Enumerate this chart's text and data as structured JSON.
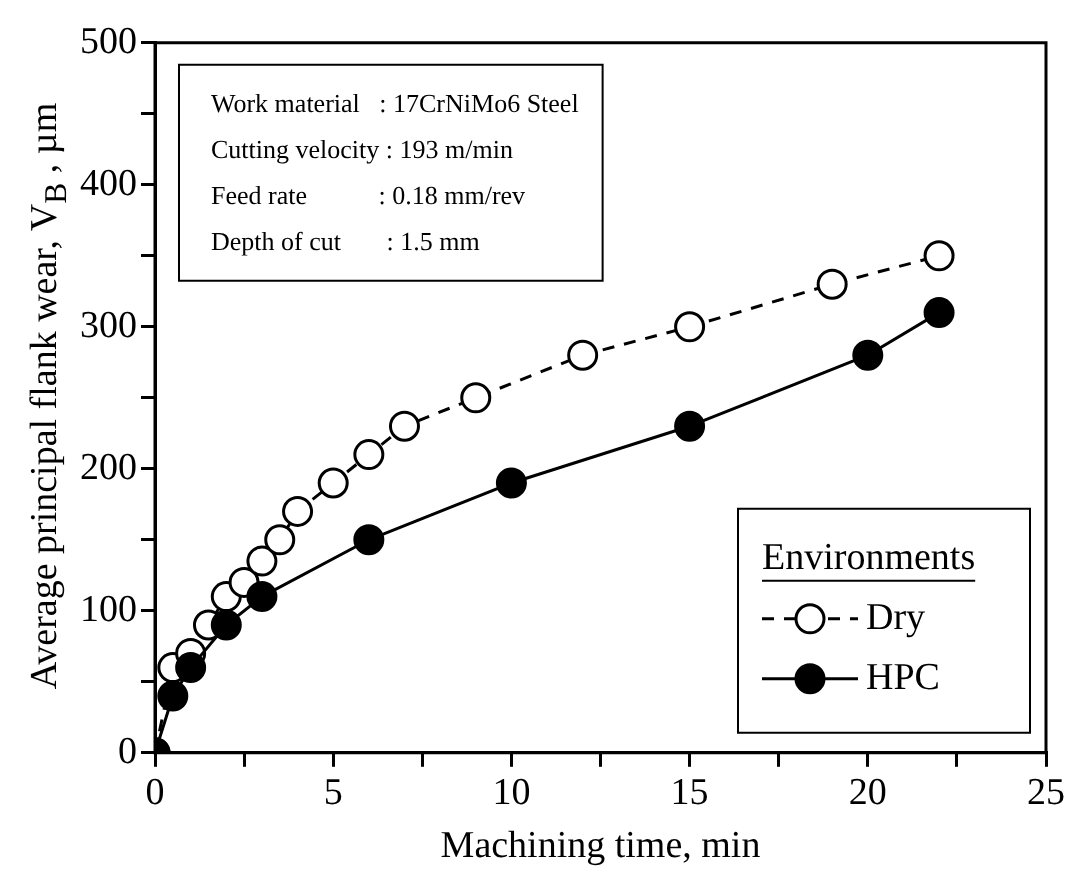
{
  "chart_data": {
    "type": "line",
    "xlabel": "Machining time, min",
    "ylabel": "Average principal flank wear, V$_{B}$ , µm",
    "legend_title": "Environments",
    "annotations": [
      "Work material   : 17CrNiMo6 Steel",
      "Cutting velocity : 193 m/min",
      "Feed rate           : 0.18 mm/rev",
      "Depth of cut       : 1.5 mm"
    ],
    "series": [
      {
        "name": "Dry",
        "color": "#000000",
        "marker": "circle",
        "line_style": "dashed",
        "x": [
          0,
          0.5,
          1,
          1.5,
          2,
          2.5,
          3,
          3.5,
          4,
          5,
          6,
          7,
          9,
          12,
          15,
          19,
          22
        ],
        "values": [
          0,
          60,
          70,
          90,
          110,
          120,
          135,
          150,
          170,
          190,
          210,
          230,
          250,
          280,
          300,
          330,
          350
        ]
      },
      {
        "name": "HPC",
        "color": "#000000",
        "marker": "circle",
        "line_style": "solid",
        "x": [
          0,
          0.5,
          1,
          2,
          3,
          6,
          10,
          15,
          20,
          22
        ],
        "values": [
          0,
          40,
          60,
          90,
          110,
          150,
          190,
          230,
          280,
          310
        ]
      }
    ],
    "xlim": [
      0,
      25
    ],
    "xticks": [
      0,
      {
        "value": 2.5,
        "label": null
      },
      5,
      {
        "value": 7.5,
        "label": null
      },
      10,
      {
        "value": 12.5,
        "label": null
      },
      15,
      {
        "value": 17.5,
        "label": null
      },
      20,
      {
        "value": 22.5,
        "label": null
      },
      25
    ],
    "ylim": [
      0,
      500
    ],
    "yticks": [
      0,
      {
        "value": 50,
        "label": null
      },
      100,
      {
        "value": 150,
        "label": null
      },
      200,
      {
        "value": 250,
        "label": null
      },
      300,
      {
        "value": 350,
        "label": null
      },
      400,
      {
        "value": 450,
        "label": null
      },
      500
    ],
    "grid": false,
    "legend": "bottom right"
  }
}
